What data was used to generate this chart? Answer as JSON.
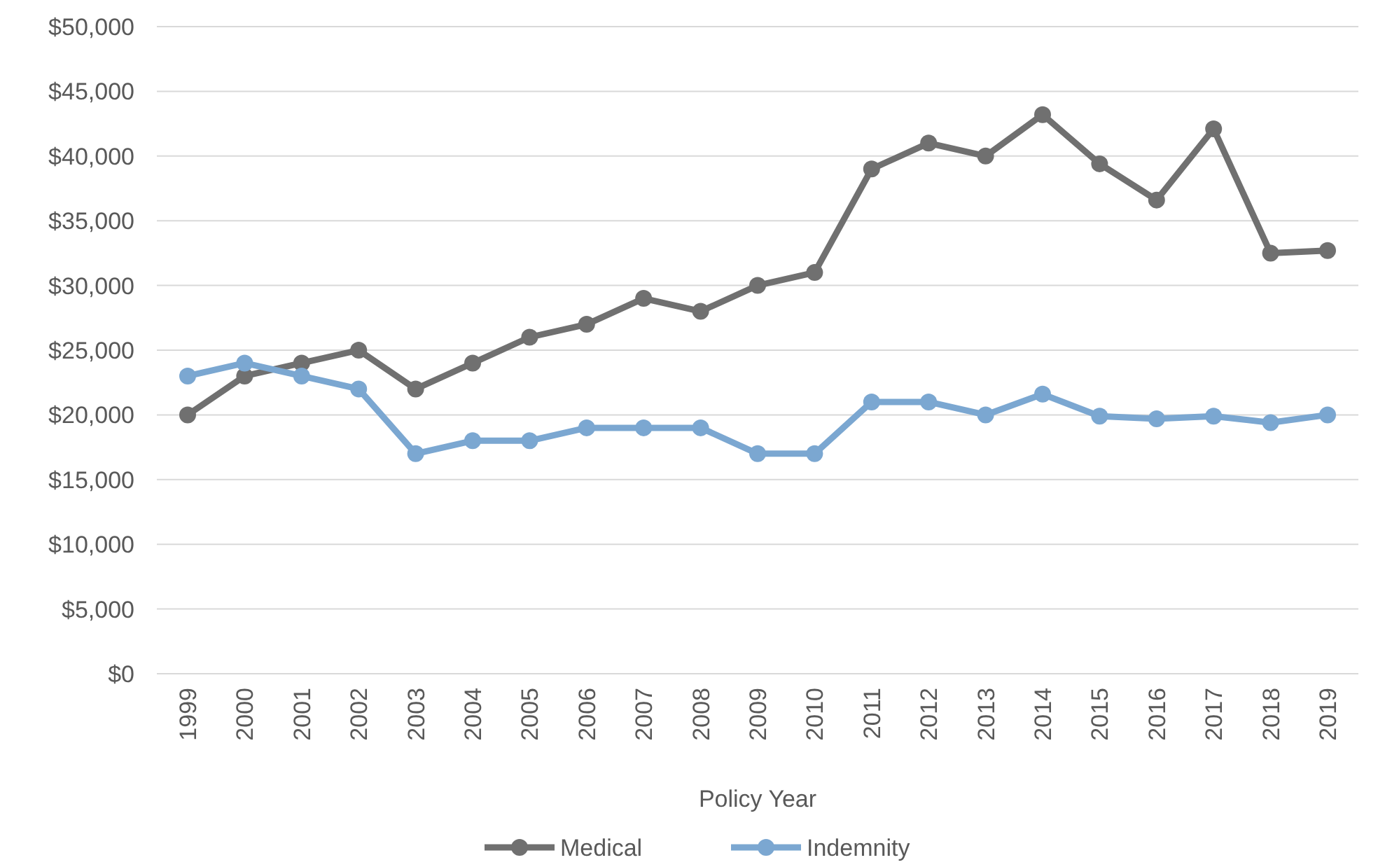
{
  "chart_data": {
    "type": "line",
    "xlabel": "Policy Year",
    "categories": [
      "1999",
      "2000",
      "2001",
      "2002",
      "2003",
      "2004",
      "2005",
      "2006",
      "2007",
      "2008",
      "2009",
      "2010",
      "2011",
      "2012",
      "2013",
      "2014",
      "2015",
      "2016",
      "2017",
      "2018",
      "2019"
    ],
    "series": [
      {
        "name": "Medical",
        "color": "#707070",
        "values": [
          20000,
          23000,
          24000,
          25000,
          22000,
          24000,
          26000,
          27000,
          29000,
          28000,
          30000,
          31000,
          39000,
          41000,
          40000,
          43200,
          39400,
          36600,
          42100,
          32500,
          32700
        ]
      },
      {
        "name": "Indemnity",
        "color": "#7ba7d1",
        "values": [
          23000,
          24000,
          23000,
          22000,
          17000,
          18000,
          18000,
          19000,
          19000,
          19000,
          17000,
          17000,
          21000,
          21000,
          20000,
          21600,
          19900,
          19700,
          19900,
          19400,
          20000
        ]
      }
    ],
    "ylim": [
      0,
      50000
    ],
    "yticks": [
      {
        "value": 0,
        "label": "$0"
      },
      {
        "value": 5000,
        "label": "$5,000"
      },
      {
        "value": 10000,
        "label": "$10,000"
      },
      {
        "value": 15000,
        "label": "$15,000"
      },
      {
        "value": 20000,
        "label": "$20,000"
      },
      {
        "value": 25000,
        "label": "$25,000"
      },
      {
        "value": 30000,
        "label": "$30,000"
      },
      {
        "value": 35000,
        "label": "$35,000"
      },
      {
        "value": 40000,
        "label": "$40,000"
      },
      {
        "value": 45000,
        "label": "$45,000"
      },
      {
        "value": 50000,
        "label": "$50,000"
      }
    ],
    "grid": "y",
    "legend": "bottom",
    "marker": "circle",
    "line_style": "solid"
  }
}
